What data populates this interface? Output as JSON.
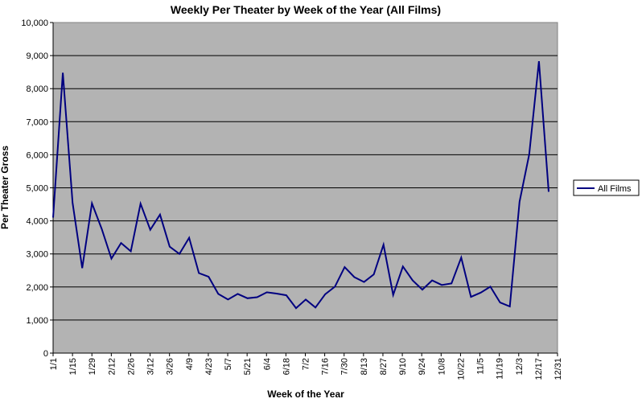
{
  "chart_data": {
    "type": "line",
    "title": "Weekly Per Theater by Week of the Year (All Films)",
    "xlabel": "Week of the Year",
    "ylabel": "Per Theater Gross",
    "ylim": [
      0,
      10000
    ],
    "y_ticks": [
      {
        "value": 0,
        "label": "0"
      },
      {
        "value": 1000,
        "label": "1,000"
      },
      {
        "value": 2000,
        "label": "2,000"
      },
      {
        "value": 3000,
        "label": "3,000"
      },
      {
        "value": 4000,
        "label": "4,000"
      },
      {
        "value": 5000,
        "label": "5,000"
      },
      {
        "value": 6000,
        "label": "6,000"
      },
      {
        "value": 7000,
        "label": "7,000"
      },
      {
        "value": 8000,
        "label": "8,000"
      },
      {
        "value": 9000,
        "label": "9,000"
      },
      {
        "value": 10000,
        "label": "10,000"
      }
    ],
    "x_tick_labels": [
      "1/1",
      "1/15",
      "1/29",
      "2/12",
      "2/26",
      "3/12",
      "3/26",
      "4/9",
      "4/23",
      "5/7",
      "5/21",
      "6/4",
      "6/18",
      "7/2",
      "7/16",
      "7/30",
      "8/13",
      "8/27",
      "9/10",
      "9/24",
      "10/8",
      "10/22",
      "11/5",
      "11/19",
      "12/3",
      "12/17",
      "12/31"
    ],
    "grid": true,
    "background_color": "#b3b3b3",
    "line_color": "#000080",
    "legend_position": "right",
    "series": [
      {
        "name": "All Films",
        "values": [
          4100,
          8480,
          4550,
          2570,
          4530,
          3760,
          2860,
          3330,
          3080,
          4520,
          3730,
          4190,
          3220,
          3000,
          3490,
          2420,
          2310,
          1790,
          1620,
          1790,
          1660,
          1690,
          1840,
          1800,
          1750,
          1360,
          1620,
          1380,
          1780,
          2010,
          2600,
          2300,
          2150,
          2380,
          3280,
          1760,
          2620,
          2200,
          1920,
          2200,
          2060,
          2110,
          2890,
          1700,
          1830,
          2010,
          1530,
          1410,
          4580,
          6010,
          8830,
          4880
        ]
      }
    ]
  }
}
